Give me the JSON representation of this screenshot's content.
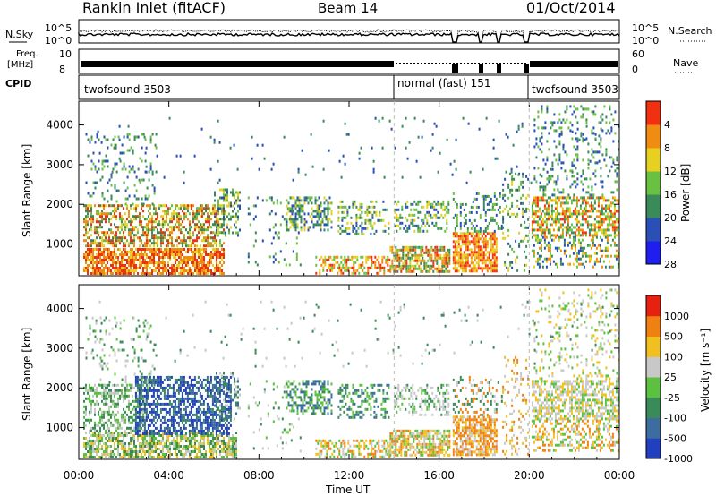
{
  "header": {
    "title": "Rankin Inlet (fitACF)",
    "beam": "Beam 14",
    "date": "01/Oct/2014"
  },
  "noise_panel": {
    "left_label": "N.Sky",
    "right_label": "N.Search",
    "top_tick": "10^5",
    "bottom_tick": "10^0"
  },
  "freq_panel": {
    "left_label_line1": "Freq.",
    "left_label_line2": "[MHz]",
    "left_ticks": [
      "10",
      "8"
    ],
    "right_ticks": [
      "60",
      "0"
    ],
    "right_label": "Nave"
  },
  "cpid_panel": {
    "label": "CPID",
    "segments": [
      {
        "name": "twofsound 3503",
        "start_hour": 0,
        "end_hour": 14
      },
      {
        "name": "normal (fast) 151",
        "start_hour": 14,
        "end_hour": 20
      },
      {
        "name": "twofsound 3503",
        "start_hour": 20,
        "end_hour": 24
      }
    ]
  },
  "chart_data": [
    {
      "type": "heatmap",
      "panel": "power",
      "ylabel": "Slant Range [km]",
      "y_ticks": [
        1000,
        2000,
        3000,
        4000
      ],
      "ylim": [
        200,
        4600
      ],
      "xlim": [
        0,
        24
      ],
      "colorbar_label": "Power [dB]",
      "colorbar_ticks": [
        "4",
        "8",
        "12",
        "16",
        "20",
        "24",
        "28"
      ],
      "colors": [
        "#1e1ef0",
        "#2a50b8",
        "#3a8a5a",
        "#6ac040",
        "#e8d020",
        "#f08c10",
        "#f03010"
      ]
    },
    {
      "type": "heatmap",
      "panel": "velocity",
      "ylabel": "Slant Range [km]",
      "y_ticks": [
        1000,
        2000,
        3000,
        4000
      ],
      "ylim": [
        200,
        4600
      ],
      "xlim": [
        0,
        24
      ],
      "colorbar_label": "Velocity [m s⁻¹]",
      "colorbar_ticks": [
        "1000",
        "500",
        "100",
        "25",
        "-25",
        "-100",
        "-500",
        "-1000"
      ],
      "colors": [
        "#2040c0",
        "#3c6ca0",
        "#3a8a5a",
        "#5cc040",
        "#c8c8c8",
        "#f0c020",
        "#f08010",
        "#e82010"
      ]
    }
  ],
  "x_axis": {
    "ticks": [
      "00:00",
      "04:00",
      "08:00",
      "12:00",
      "16:00",
      "20:00",
      "00:00"
    ],
    "label": "Time UT"
  }
}
